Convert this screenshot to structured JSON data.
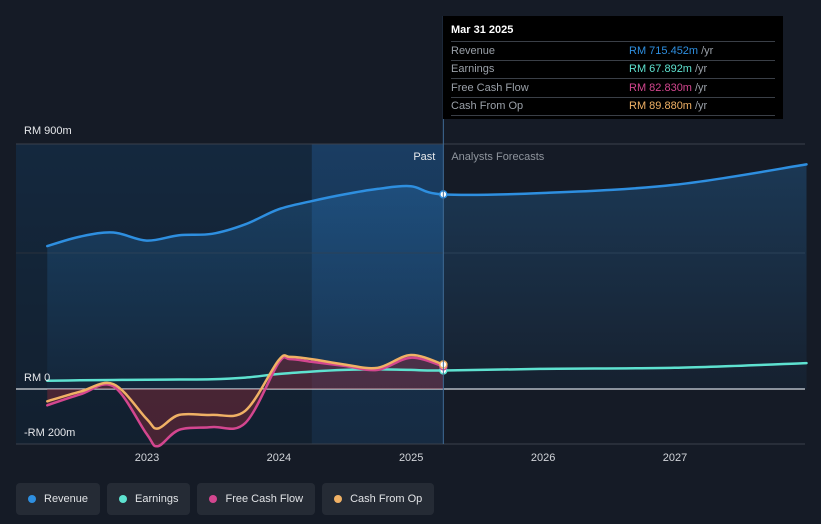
{
  "chart_data": {
    "type": "line",
    "title": "",
    "y_ticks": [
      "RM 900m",
      "RM 0",
      "-RM 200m"
    ],
    "x_ticks": [
      "2023",
      "2024",
      "2025",
      "2026",
      "2027"
    ],
    "ylim": [
      -200,
      900
    ],
    "divider_date": "2025-03-31",
    "regions": {
      "past": "Past",
      "forecast": "Analysts Forecasts"
    },
    "colors": {
      "revenue": "#2e8fe0",
      "earnings": "#5ee2d0",
      "free_cash_flow": "#d3468f",
      "cash_from_op": "#f0b165"
    },
    "series": [
      {
        "name": "Revenue",
        "x": [
          "2022-03-31",
          "2022-06-30",
          "2022-09-30",
          "2022-12-31",
          "2023-03-31",
          "2023-06-30",
          "2023-09-30",
          "2023-12-31",
          "2024-03-31",
          "2024-06-30",
          "2024-09-30",
          "2024-12-31",
          "2025-03-31",
          "2025-12-31",
          "2026-12-31",
          "2027-12-31"
        ],
        "values": [
          525,
          560,
          575,
          545,
          565,
          570,
          605,
          660,
          690,
          715,
          735,
          745,
          715,
          720,
          750,
          825
        ]
      },
      {
        "name": "Earnings",
        "x": [
          "2022-03-31",
          "2022-06-30",
          "2022-09-30",
          "2022-12-31",
          "2023-03-31",
          "2023-06-30",
          "2023-09-30",
          "2023-12-31",
          "2024-03-31",
          "2024-06-30",
          "2024-09-30",
          "2024-12-31",
          "2025-03-31",
          "2025-12-31",
          "2026-12-31",
          "2027-12-31"
        ],
        "values": [
          30,
          32,
          33,
          34,
          35,
          36,
          42,
          55,
          64,
          70,
          72,
          70,
          68,
          74,
          78,
          95
        ]
      },
      {
        "name": "Free Cash Flow",
        "x": [
          "2022-03-31",
          "2022-06-30",
          "2022-09-30",
          "2022-12-31",
          "2023-01-31",
          "2023-03-31",
          "2023-06-30",
          "2023-09-30",
          "2023-12-31",
          "2024-01-31",
          "2024-03-31",
          "2024-06-30",
          "2024-09-30",
          "2024-12-31",
          "2025-03-31"
        ],
        "values": [
          -60,
          -20,
          10,
          -165,
          -210,
          -150,
          -140,
          -125,
          95,
          110,
          100,
          85,
          70,
          115,
          83
        ]
      },
      {
        "name": "Cash From Op",
        "x": [
          "2022-03-31",
          "2022-06-30",
          "2022-09-30",
          "2022-12-31",
          "2023-01-31",
          "2023-03-31",
          "2023-06-30",
          "2023-09-30",
          "2023-12-31",
          "2024-01-31",
          "2024-03-31",
          "2024-06-30",
          "2024-09-30",
          "2024-12-31",
          "2025-03-31"
        ],
        "values": [
          -45,
          -10,
          18,
          -110,
          -145,
          -95,
          -95,
          -80,
          105,
          118,
          110,
          90,
          78,
          125,
          90
        ]
      }
    ]
  },
  "tooltip": {
    "date": "Mar 31 2025",
    "unit": "/yr",
    "rows": [
      {
        "name": "Revenue",
        "value": "RM 715.452m",
        "color": "#2e8fe0"
      },
      {
        "name": "Earnings",
        "value": "RM 67.892m",
        "color": "#5ee2d0"
      },
      {
        "name": "Free Cash Flow",
        "value": "RM 82.830m",
        "color": "#d3468f"
      },
      {
        "name": "Cash From Op",
        "value": "RM 89.880m",
        "color": "#f0b165"
      }
    ]
  },
  "legend": [
    {
      "label": "Revenue",
      "color": "#2e8fe0"
    },
    {
      "label": "Earnings",
      "color": "#5ee2d0"
    },
    {
      "label": "Free Cash Flow",
      "color": "#d3468f"
    },
    {
      "label": "Cash From Op",
      "color": "#f0b165"
    }
  ]
}
